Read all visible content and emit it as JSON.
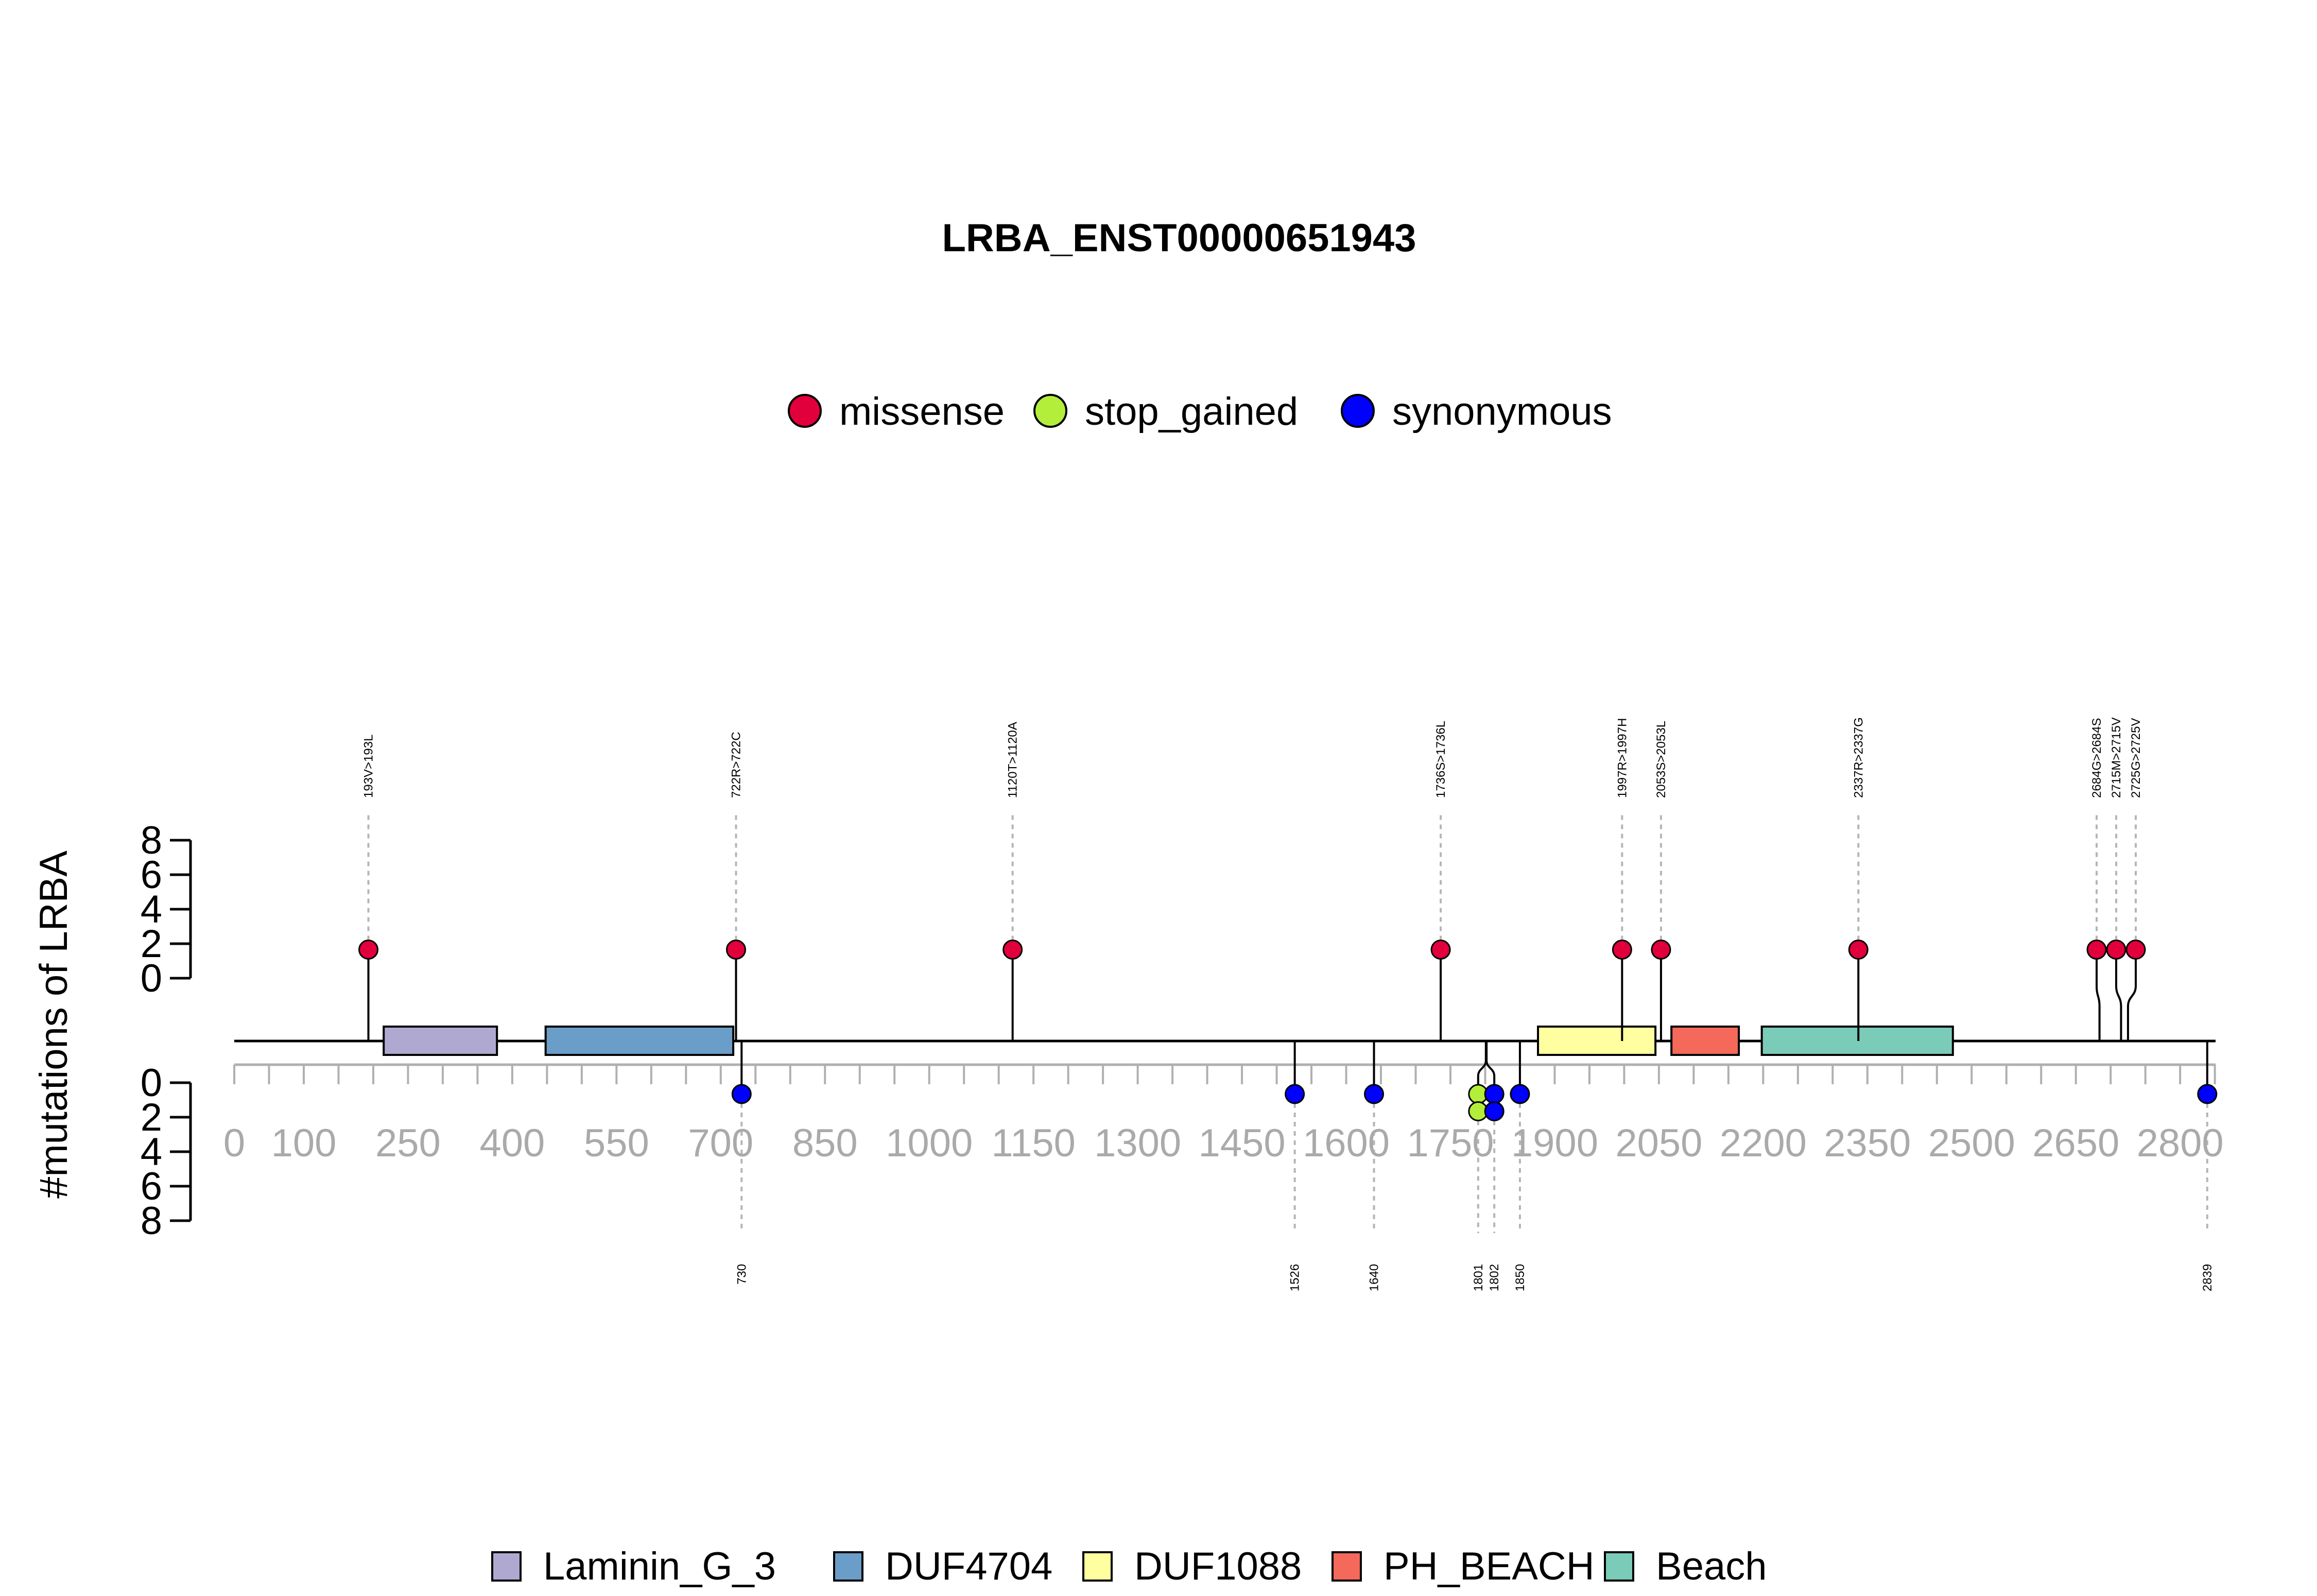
{
  "chart_data": {
    "type": "lollipop",
    "title": "LRBA_ENST00000651943",
    "ylabel": "#mutations of LRBA",
    "protein_length": 2851,
    "x_ticks": [
      0,
      100,
      250,
      400,
      550,
      700,
      850,
      1000,
      1150,
      1300,
      1450,
      1600,
      1750,
      1900,
      2050,
      2200,
      2350,
      2500,
      2650,
      2800
    ],
    "y_ticks": [
      0,
      2,
      4,
      6,
      8
    ],
    "ylim": [
      0,
      8
    ],
    "mutation_legend": [
      {
        "name": "missense",
        "color": "#e1003c"
      },
      {
        "name": "stop_gained",
        "color": "#b3ee3a"
      },
      {
        "name": "synonymous",
        "color": "#0000ff"
      }
    ],
    "domain_legend": [
      {
        "name": "Laminin_G_3",
        "color": "#afa9d1"
      },
      {
        "name": "DUF4704",
        "color": "#6a9ec9"
      },
      {
        "name": "DUF1088",
        "color": "#ffffa0"
      },
      {
        "name": "PH_BEACH",
        "color": "#f4695a"
      },
      {
        "name": "Beach",
        "color": "#7bcbb9"
      }
    ],
    "domains": [
      {
        "name": "Laminin_G_3",
        "start": 215,
        "end": 378
      },
      {
        "name": "DUF4704",
        "start": 448,
        "end": 718
      },
      {
        "name": "DUF1088",
        "start": 1876,
        "end": 2045
      },
      {
        "name": "PH_BEACH",
        "start": 2068,
        "end": 2165
      },
      {
        "name": "Beach",
        "start": 2198,
        "end": 2473
      }
    ],
    "mutations_top": [
      {
        "position": 193,
        "label": "193V>193L",
        "type": "missense",
        "count": 1
      },
      {
        "position": 722,
        "label": "722R>722C",
        "type": "missense",
        "count": 1
      },
      {
        "position": 1120,
        "label": "1120T>1120A",
        "type": "missense",
        "count": 1
      },
      {
        "position": 1736,
        "label": "1736S>1736L",
        "type": "missense",
        "count": 1
      },
      {
        "position": 1997,
        "label": "1997R>1997H",
        "type": "missense",
        "count": 1
      },
      {
        "position": 2053,
        "label": "2053S>2053L",
        "type": "missense",
        "count": 1
      },
      {
        "position": 2337,
        "label": "2337R>2337G",
        "type": "missense",
        "count": 1
      },
      {
        "position": 2684,
        "label": "2684G>2684S",
        "type": "missense",
        "count": 1
      },
      {
        "position": 2715,
        "label": "2715M>2715V",
        "type": "missense",
        "count": 1
      },
      {
        "position": 2725,
        "label": "2725G>2725V",
        "type": "missense",
        "count": 1
      }
    ],
    "mutations_bottom": [
      {
        "position": 730,
        "label": "730",
        "stack": [
          {
            "type": "synonymous",
            "count": 1
          }
        ]
      },
      {
        "position": 1526,
        "label": "1526",
        "stack": [
          {
            "type": "synonymous",
            "count": 1
          }
        ]
      },
      {
        "position": 1640,
        "label": "1640",
        "stack": [
          {
            "type": "synonymous",
            "count": 1
          }
        ]
      },
      {
        "position": 1801,
        "label": "1801",
        "stack": [
          {
            "type": "stop_gained",
            "count": 2
          }
        ]
      },
      {
        "position": 1802,
        "label": "1802",
        "stack": [
          {
            "type": "synonymous",
            "count": 2
          }
        ]
      },
      {
        "position": 1850,
        "label": "1850",
        "stack": [
          {
            "type": "synonymous",
            "count": 1
          }
        ]
      },
      {
        "position": 2839,
        "label": "2839",
        "stack": [
          {
            "type": "synonymous",
            "count": 1
          }
        ]
      }
    ]
  }
}
